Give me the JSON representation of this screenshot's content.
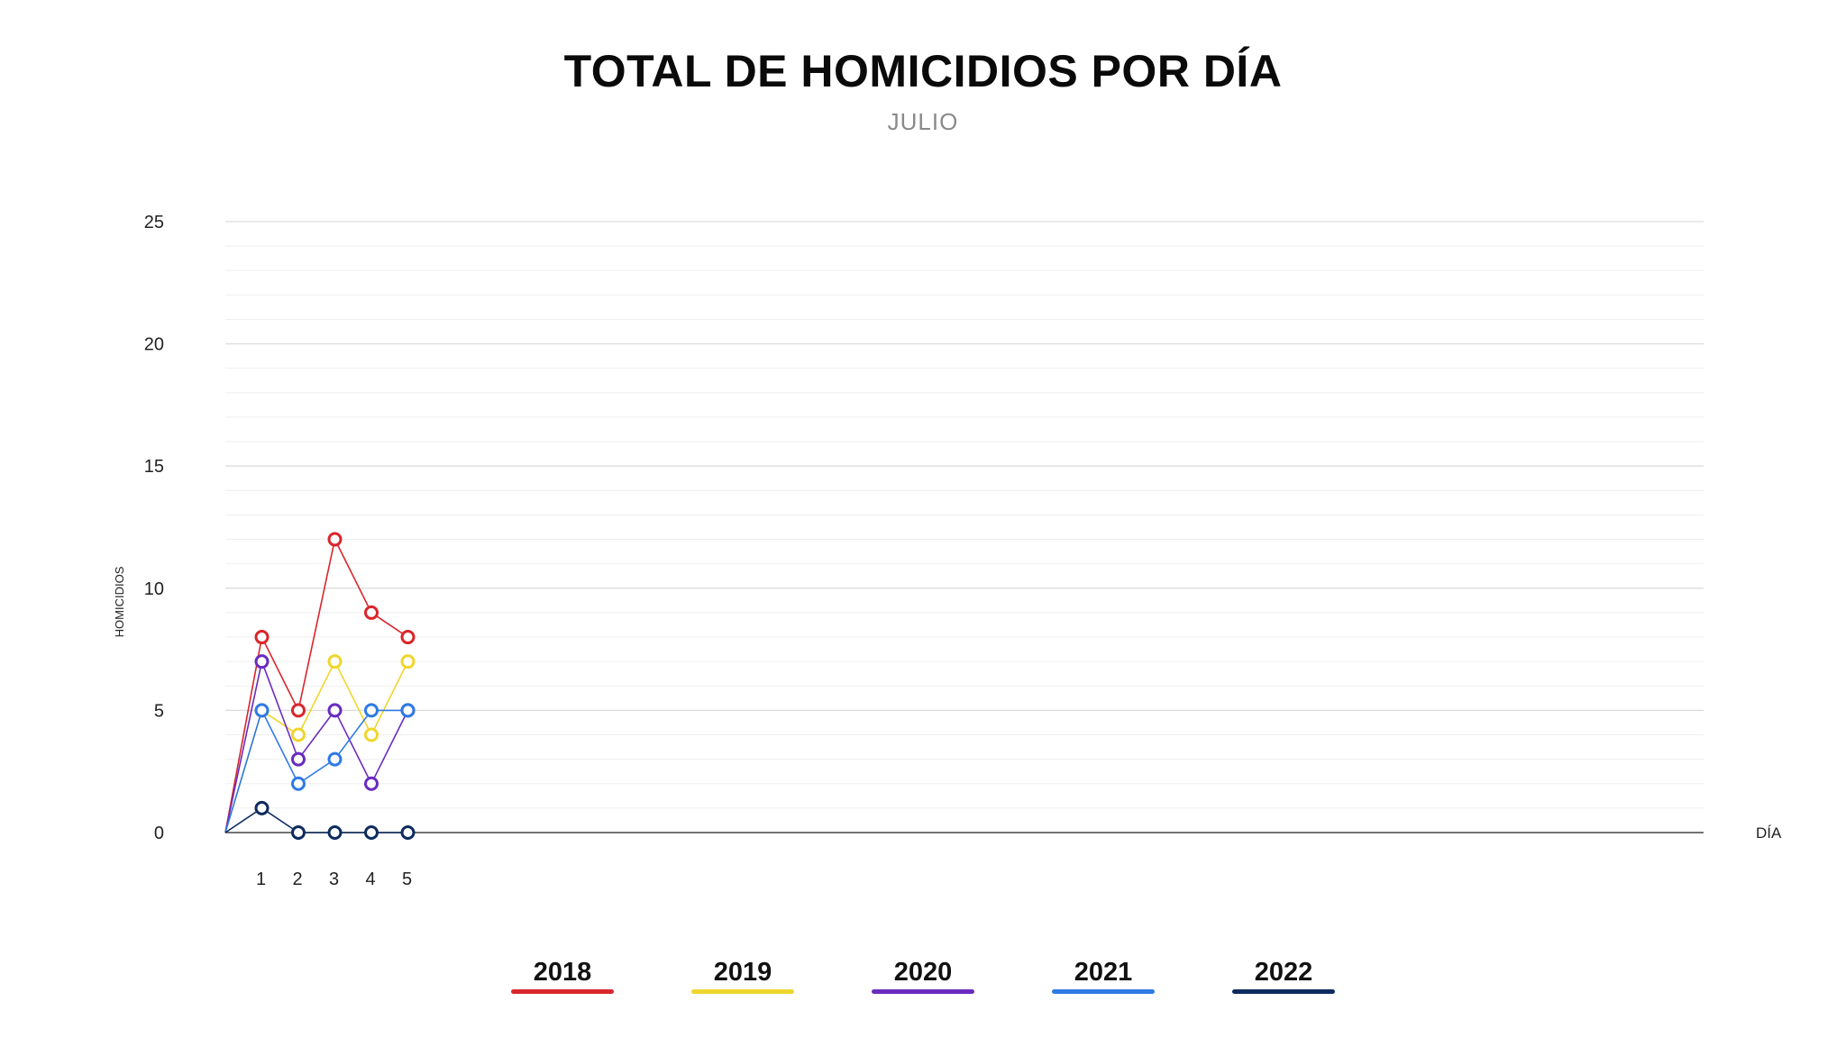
{
  "chart_data": {
    "type": "line",
    "title": "TOTAL DE HOMICIDIOS POR DÍA",
    "subtitle": "JULIO",
    "xlabel": "DÍA",
    "ylabel": "HOMICIDIOS",
    "ylim": [
      0,
      25
    ],
    "yticks": [
      0,
      5,
      10,
      15,
      20,
      25
    ],
    "grid": true,
    "legend_position": "bottom",
    "x": [
      1,
      2,
      3,
      4,
      5
    ],
    "series": [
      {
        "name": "2018",
        "color": "#d9262c",
        "values": [
          8,
          5,
          12,
          9,
          8
        ]
      },
      {
        "name": "2019",
        "color": "#efd62e",
        "values": [
          5,
          4,
          7,
          4,
          7
        ]
      },
      {
        "name": "2020",
        "color": "#6a2bbf",
        "values": [
          7,
          3,
          5,
          2,
          5
        ]
      },
      {
        "name": "2021",
        "color": "#2f7ae5",
        "values": [
          5,
          2,
          3,
          5,
          5
        ]
      },
      {
        "name": "2022",
        "color": "#0d2b5e",
        "values": [
          1,
          0,
          0,
          0,
          0
        ]
      }
    ]
  }
}
